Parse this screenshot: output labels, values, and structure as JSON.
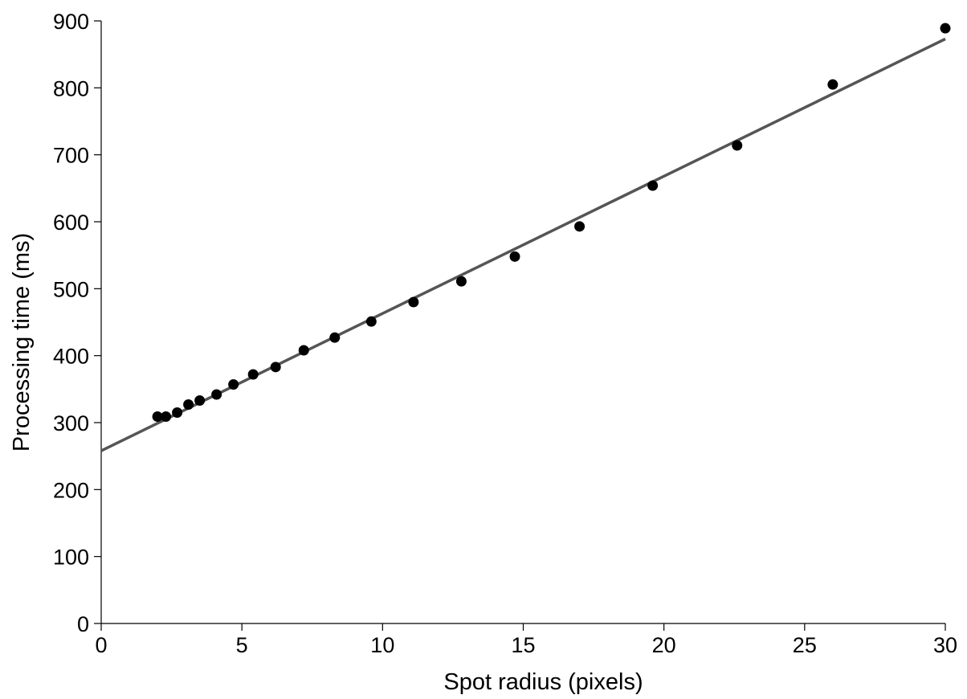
{
  "chart_data": {
    "type": "scatter",
    "title": "",
    "xlabel": "Spot radius (pixels)",
    "ylabel": "Processing time (ms)",
    "xlim": [
      0,
      30
    ],
    "ylim": [
      0,
      900
    ],
    "x_ticks": [
      "0",
      "5",
      "10",
      "15",
      "20",
      "25",
      "30"
    ],
    "y_ticks": [
      "0",
      "100",
      "200",
      "300",
      "400",
      "500",
      "600",
      "700",
      "800",
      "900"
    ],
    "grid": false,
    "legend": "none",
    "series": [
      {
        "type": "scatter",
        "color": "#000000",
        "points": [
          [
            2.0,
            309
          ],
          [
            2.3,
            309
          ],
          [
            2.7,
            315
          ],
          [
            3.1,
            327
          ],
          [
            3.5,
            333
          ],
          [
            4.1,
            342
          ],
          [
            4.7,
            357
          ],
          [
            5.4,
            372
          ],
          [
            6.2,
            383
          ],
          [
            7.2,
            408
          ],
          [
            8.3,
            427
          ],
          [
            9.6,
            451
          ],
          [
            11.1,
            480
          ],
          [
            12.8,
            511
          ],
          [
            14.7,
            548
          ],
          [
            17.0,
            593
          ],
          [
            19.6,
            654
          ],
          [
            22.6,
            714
          ],
          [
            26.0,
            805
          ],
          [
            30.0,
            889
          ]
        ]
      },
      {
        "type": "line",
        "color": "#555555",
        "fit": {
          "intercept": 258,
          "slope": 20.5
        },
        "x_range": [
          0,
          30
        ]
      }
    ]
  }
}
